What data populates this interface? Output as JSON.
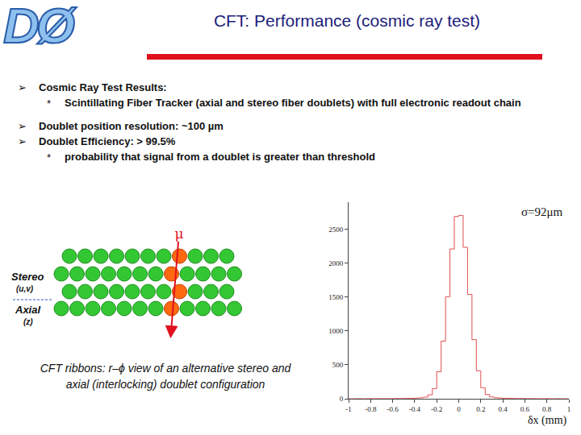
{
  "slide": {
    "logo": "DØ",
    "title": "CFT: Performance (cosmic ray test)",
    "bullets": [
      {
        "text": "Cosmic Ray Test Results:",
        "sub": [
          "Scintillating Fiber Tracker (axial and stereo fiber doublets) with full electronic readout chain"
        ]
      },
      {
        "text": "Doublet position resolution:  ~100 µm"
      },
      {
        "text": "Doublet Efficiency: > 99.5%",
        "sub": [
          "probability that signal from a doublet is greater than threshold"
        ]
      }
    ]
  },
  "diagram": {
    "particle": "μ",
    "stereo_label": "Stereo",
    "stereo_sub": "(u,v)",
    "axial_label": "Axial",
    "axial_sub": "(z)",
    "caption": "CFT ribbons: r–ϕ view of an alternative stereo and axial (interlocking) doublet configuration"
  },
  "chart_data": {
    "type": "histogram",
    "bins": [
      -1,
      -0.96,
      -0.92,
      -0.88,
      -0.84,
      -0.8,
      -0.76,
      -0.72,
      -0.68,
      -0.64,
      -0.6,
      -0.56,
      -0.52,
      -0.48,
      -0.44,
      -0.4,
      -0.36,
      -0.32,
      -0.28,
      -0.24,
      -0.2,
      -0.16,
      -0.12,
      -0.08,
      -0.04,
      0,
      0.04,
      0.08,
      0.12,
      0.16,
      0.2,
      0.24,
      0.28,
      0.32,
      0.36,
      0.4,
      0.44,
      0.48,
      0.52,
      0.56,
      0.6,
      0.64,
      0.68,
      0.72,
      0.76,
      0.8,
      0.84,
      0.88,
      0.92,
      0.96,
      1
    ],
    "counts": [
      0,
      0,
      1,
      0,
      1,
      1,
      1,
      2,
      1,
      2,
      3,
      3,
      4,
      5,
      7,
      9,
      14,
      24,
      58,
      150,
      398,
      850,
      1505,
      2210,
      2690,
      2705,
      2235,
      1540,
      872,
      412,
      162,
      62,
      26,
      15,
      10,
      7,
      5,
      4,
      3,
      3,
      2,
      2,
      1,
      1,
      1,
      1,
      0,
      1,
      0,
      0
    ],
    "color": "#e05050",
    "x_label": "δx (mm)",
    "annotations": [
      "σ=92μm"
    ],
    "xlim": [
      -1,
      1
    ],
    "xticks": [
      -1,
      -0.8,
      -0.6,
      -0.4,
      -0.2,
      0,
      0.2,
      0.4,
      0.6,
      0.8,
      1
    ],
    "ylim": [
      0,
      2900
    ],
    "yticks": [
      0,
      500,
      1000,
      1500,
      2000,
      2500
    ],
    "grid": false
  }
}
